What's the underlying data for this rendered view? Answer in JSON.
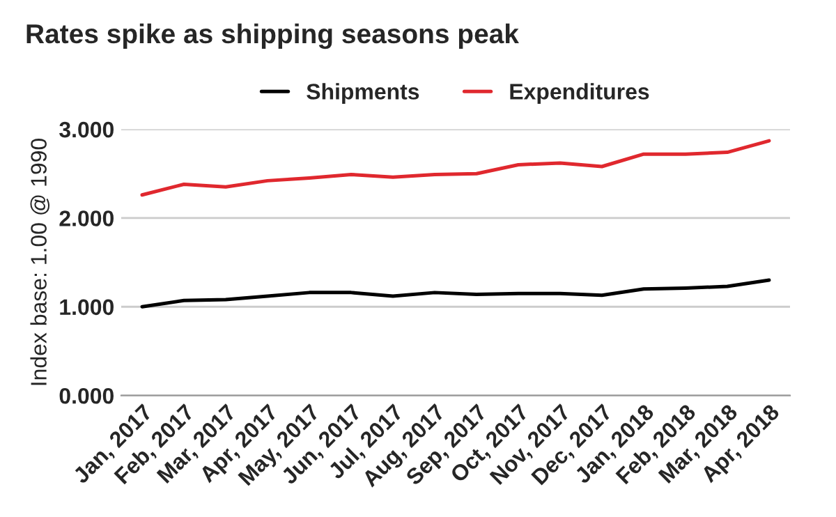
{
  "chart_data": {
    "type": "line",
    "title": "Rates spike as shipping seasons peak",
    "ylabel": "Index base: 1.00 @ 1990",
    "categories": [
      "Jan, 2017",
      "Feb, 2017",
      "Mar, 2017",
      "Apr, 2017",
      "May, 2017",
      "Jun, 2017",
      "Jul, 2017",
      "Aug, 2017",
      "Sep, 2017",
      "Oct, 2017",
      "Nov, 2017",
      "Dec, 2017",
      "Jan, 2018",
      "Feb, 2018",
      "Mar, 2018",
      "Apr, 2018"
    ],
    "series": [
      {
        "name": "Shipments",
        "color": "#000000",
        "values": [
          1.0,
          1.07,
          1.08,
          1.12,
          1.16,
          1.16,
          1.12,
          1.16,
          1.14,
          1.15,
          1.15,
          1.13,
          1.2,
          1.21,
          1.23,
          1.3
        ]
      },
      {
        "name": "Expenditures",
        "color": "#e0282e",
        "values": [
          2.26,
          2.38,
          2.35,
          2.42,
          2.45,
          2.49,
          2.46,
          2.49,
          2.5,
          2.6,
          2.62,
          2.58,
          2.72,
          2.72,
          2.74,
          2.87
        ]
      }
    ],
    "ylim": [
      0,
      3
    ],
    "yticks": [
      {
        "value": 0,
        "label": "0.000"
      },
      {
        "value": 1,
        "label": "1.000"
      },
      {
        "value": 2,
        "label": "2.000"
      },
      {
        "value": 3,
        "label": "3.000"
      }
    ],
    "grid": "y",
    "legend": "top",
    "marker": "none",
    "line_style": "solid"
  }
}
